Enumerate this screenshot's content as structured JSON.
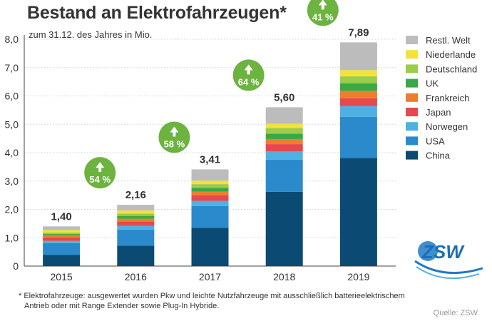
{
  "header": {
    "title": "Bestand an Elektrofahrzeugen*",
    "subtitle": "zum 31.12. des Jahres in Mio."
  },
  "chart_data": {
    "type": "bar",
    "stacked": true,
    "categories": [
      "2015",
      "2016",
      "2017",
      "2018",
      "2019"
    ],
    "totals": [
      "1,40",
      "2,16",
      "3,41",
      "5,60",
      "7,89"
    ],
    "growth": [
      {
        "between": [
          "2015",
          "2016"
        ],
        "label": "54 %"
      },
      {
        "between": [
          "2016",
          "2017"
        ],
        "label": "58 %"
      },
      {
        "between": [
          "2017",
          "2018"
        ],
        "label": "64 %"
      },
      {
        "between": [
          "2018",
          "2019"
        ],
        "label": "41 %"
      }
    ],
    "ylim": [
      0,
      8
    ],
    "yticks": [
      "0",
      "1,0",
      "2,0",
      "3,0",
      "4,0",
      "5,0",
      "6,0",
      "7,0",
      "8,0"
    ],
    "grid": true,
    "legend_position": "right",
    "series": [
      {
        "name": "China",
        "color": "#0b4a73",
        "values": [
          0.39,
          0.72,
          1.35,
          2.62,
          3.81
        ]
      },
      {
        "name": "USA",
        "color": "#2a8acb",
        "values": [
          0.42,
          0.57,
          0.77,
          1.13,
          1.45
        ]
      },
      {
        "name": "Norwegen",
        "color": "#4fb0e3",
        "values": [
          0.08,
          0.13,
          0.18,
          0.3,
          0.38
        ]
      },
      {
        "name": "Japan",
        "color": "#e5484d",
        "values": [
          0.12,
          0.15,
          0.2,
          0.25,
          0.28
        ]
      },
      {
        "name": "Frankreich",
        "color": "#ef7d2e",
        "values": [
          0.07,
          0.1,
          0.13,
          0.18,
          0.26
        ]
      },
      {
        "name": "UK",
        "color": "#3aa844",
        "values": [
          0.05,
          0.1,
          0.13,
          0.19,
          0.26
        ]
      },
      {
        "name": "Deutschland",
        "color": "#9bcc4a",
        "values": [
          0.05,
          0.08,
          0.13,
          0.2,
          0.25
        ]
      },
      {
        "name": "Niederlande",
        "color": "#f4e23c",
        "values": [
          0.09,
          0.11,
          0.12,
          0.15,
          0.22
        ]
      },
      {
        "name": "Restl. Welt",
        "color": "#bcbcbc",
        "values": [
          0.13,
          0.2,
          0.4,
          0.58,
          0.98
        ]
      }
    ],
    "growth_color": "#6cb33f"
  },
  "brand": {
    "logo_text": "ZSW"
  },
  "footnote": {
    "line1": "* Elektrofahrzeuge: ausgewertet wurden Pkw und leichte Nutzfahrzeuge mit ausschließlich batterieelektrischem",
    "line2": "Antrieb oder mit Range Extender sowie Plug-In Hybride."
  },
  "source": "Quelle: ZSW"
}
